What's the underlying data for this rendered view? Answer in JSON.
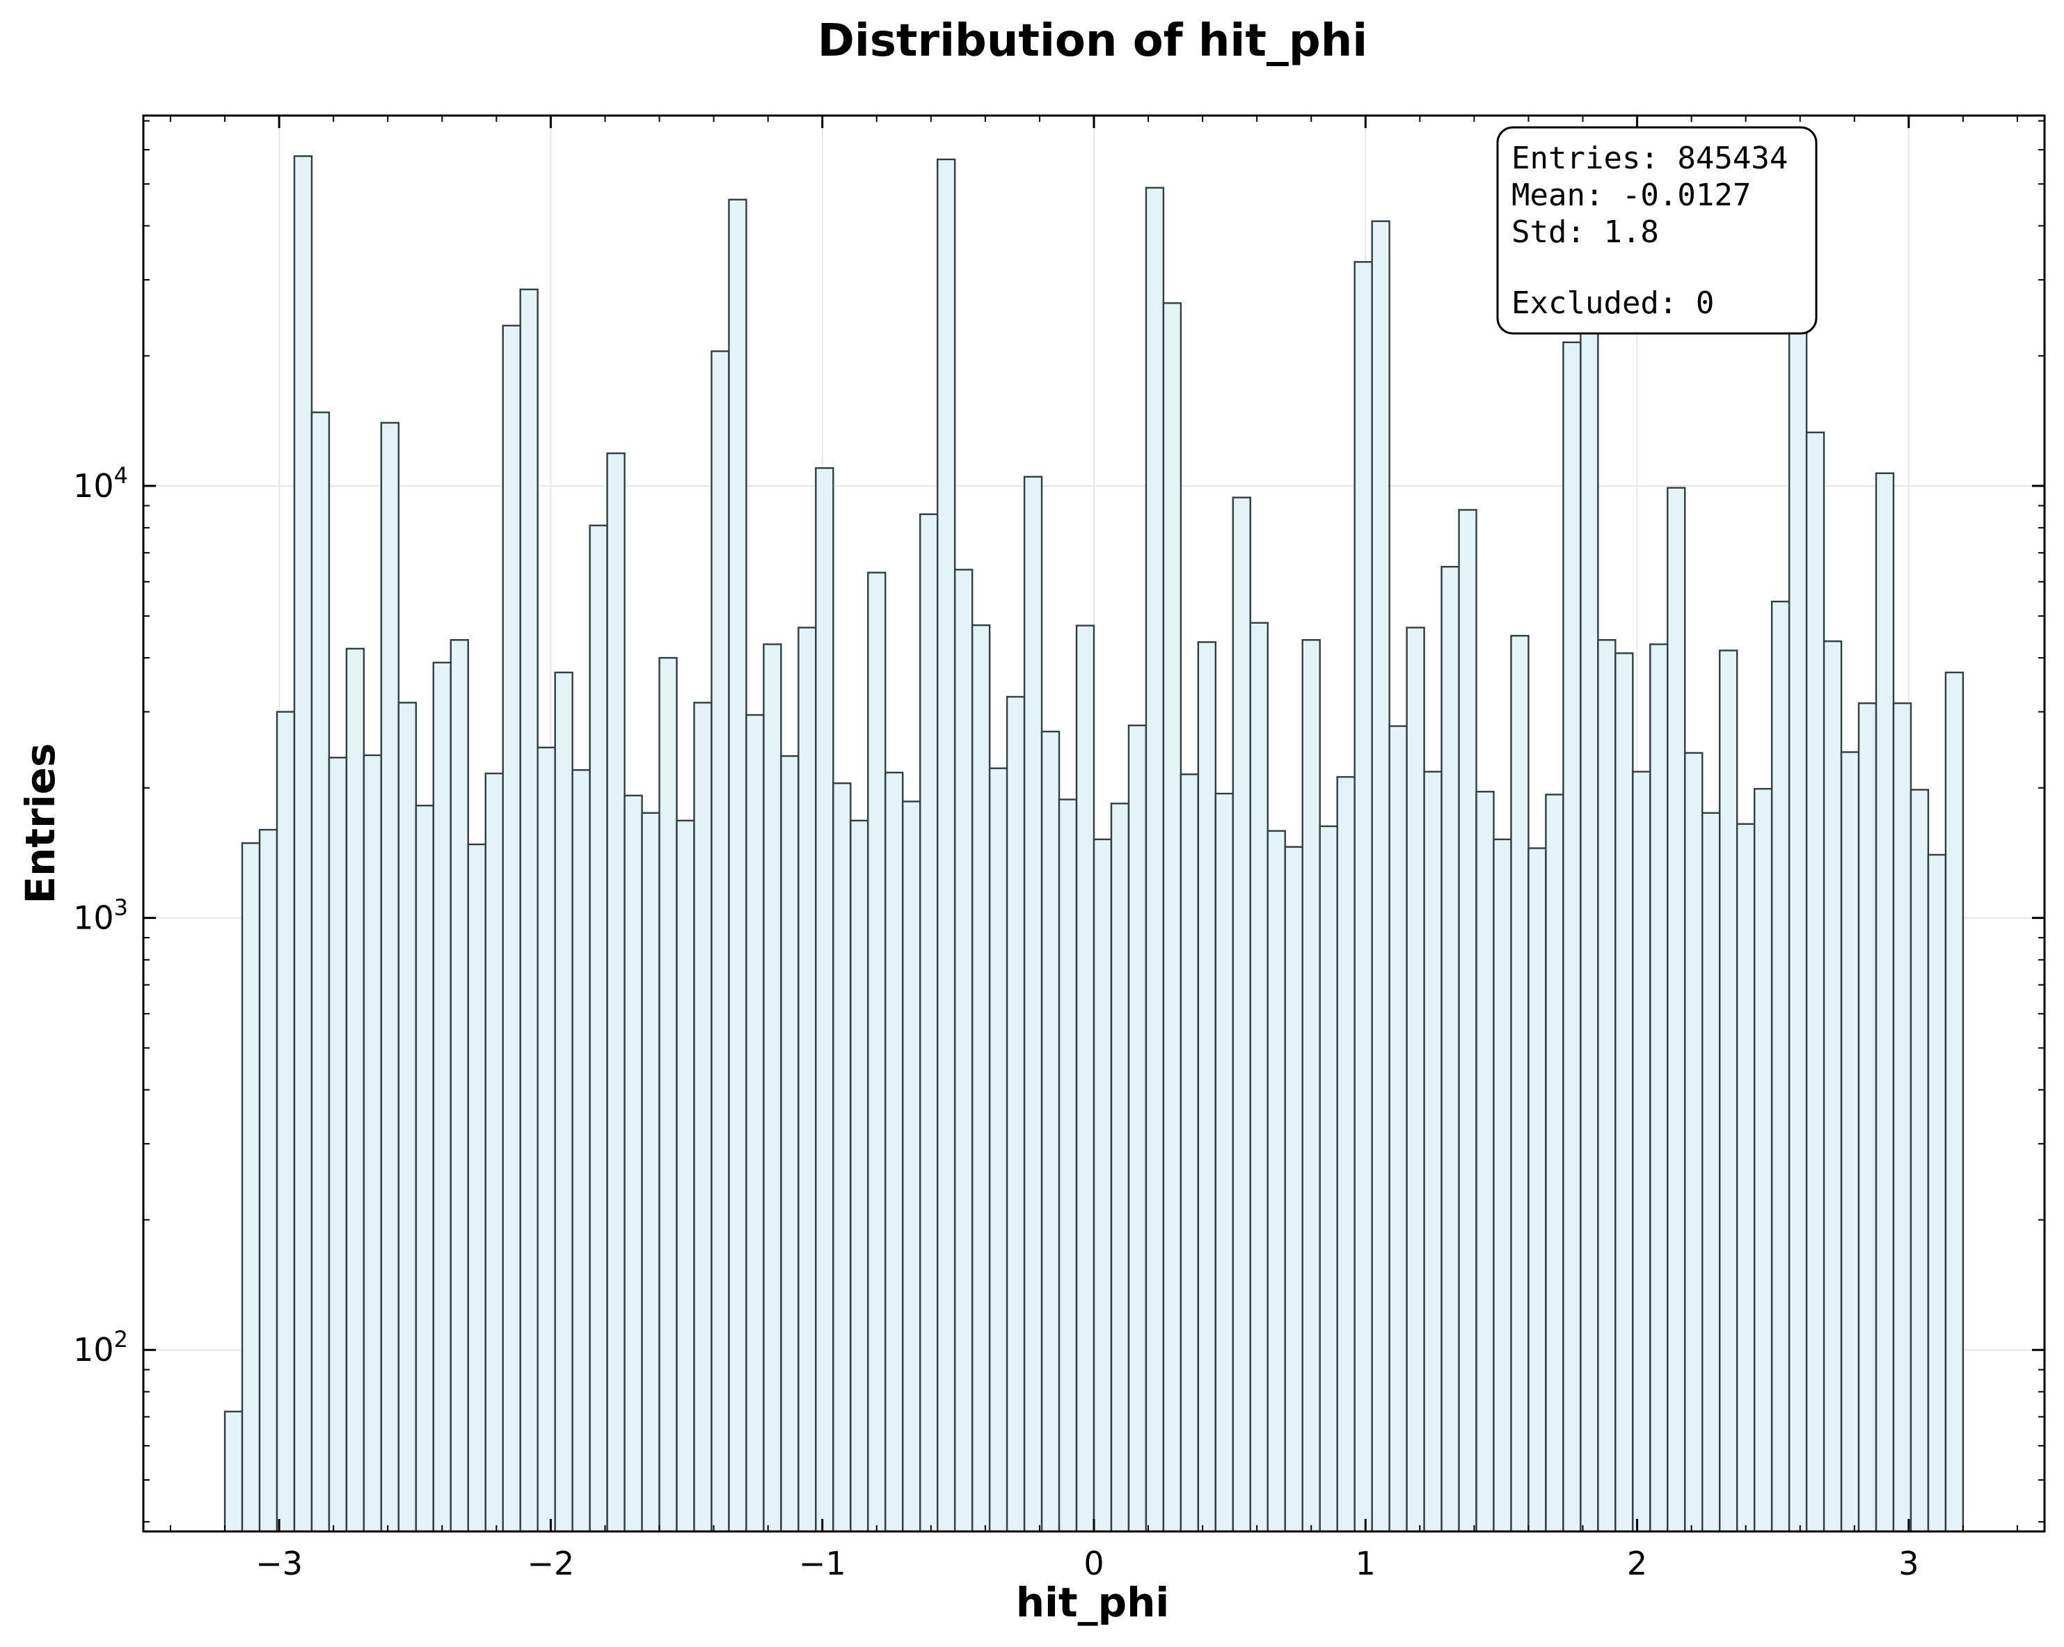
{
  "chart_data": {
    "type": "bar",
    "title": "Distribution of hit_phi",
    "xlabel": "hit_phi",
    "ylabel": "Entries",
    "yscale": "log",
    "xlim": [
      -3.5,
      3.5
    ],
    "ylim": [
      38,
      72000
    ],
    "grid": true,
    "bar_color": "#e4f4f6",
    "edge_color": "#2f3f3f",
    "x_ticks": [
      -3,
      -2,
      -1,
      0,
      1,
      2,
      3
    ],
    "x_tick_labels": [
      "−3",
      "−2",
      "−1",
      "0",
      "1",
      "2",
      "3"
    ],
    "y_ticks": [
      {
        "base": "10",
        "exp": "2",
        "value": 100
      },
      {
        "base": "10",
        "exp": "3",
        "value": 1000
      },
      {
        "base": "10",
        "exp": "4",
        "value": 10000
      }
    ],
    "bin_start": -3.2,
    "bin_end": 3.2,
    "values": [
      72,
      1490,
      1600,
      3000,
      58000,
      14800,
      2350,
      4200,
      2380,
      14000,
      3150,
      1820,
      3900,
      4400,
      1480,
      2160,
      23500,
      28500,
      2480,
      3700,
      2200,
      8100,
      11900,
      1920,
      1750,
      4000,
      1680,
      3150,
      20500,
      46000,
      2950,
      4300,
      2370,
      4700,
      11000,
      2050,
      1680,
      6300,
      2170,
      1860,
      8600,
      57000,
      6400,
      4760,
      2220,
      3250,
      10500,
      2700,
      1880,
      4750,
      1520,
      1840,
      2790,
      49000,
      26500,
      2150,
      4350,
      1940,
      9400,
      4820,
      1590,
      1460,
      4400,
      1630,
      2120,
      33000,
      41000,
      2780,
      4700,
      2180,
      6500,
      8800,
      1960,
      1520,
      4500,
      1450,
      1930,
      21500,
      31000,
      4400,
      4100,
      2180,
      4300,
      9900,
      2410,
      1750,
      4160,
      1650,
      1990,
      5400,
      60000,
      13300,
      4370,
      2420,
      3140,
      10700,
      3140,
      1980,
      1400,
      3700
    ],
    "stats": {
      "entries": "Entries: 845434",
      "mean": "Mean: -0.0127",
      "std": "Std: 1.8",
      "excluded": "Excluded: 0"
    }
  }
}
